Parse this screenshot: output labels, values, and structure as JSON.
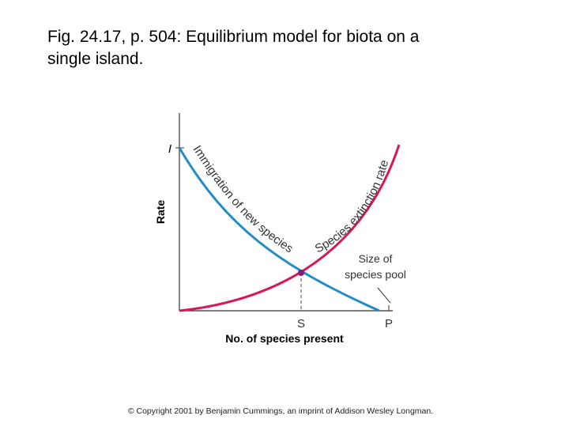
{
  "header": {
    "title_lines": [
      "Fig. 24.17, p. 504:  Equilibrium model for biota on a",
      "single island."
    ]
  },
  "figure": {
    "y_axis_label": "Rate",
    "x_axis_label": "No. of species present",
    "y_marker": "I",
    "x_marker_equilibrium": "S",
    "x_marker_pool": "P",
    "immigration_curve_label": "Immigration of new species",
    "extinction_curve_label": "Species extinction rate",
    "annotation_lines": [
      "Size of",
      "species pool"
    ]
  },
  "footer": {
    "copyright": "© Copyright 2001 by Benjamin Cummings, an imprint of Addison Wesley Longman."
  }
}
